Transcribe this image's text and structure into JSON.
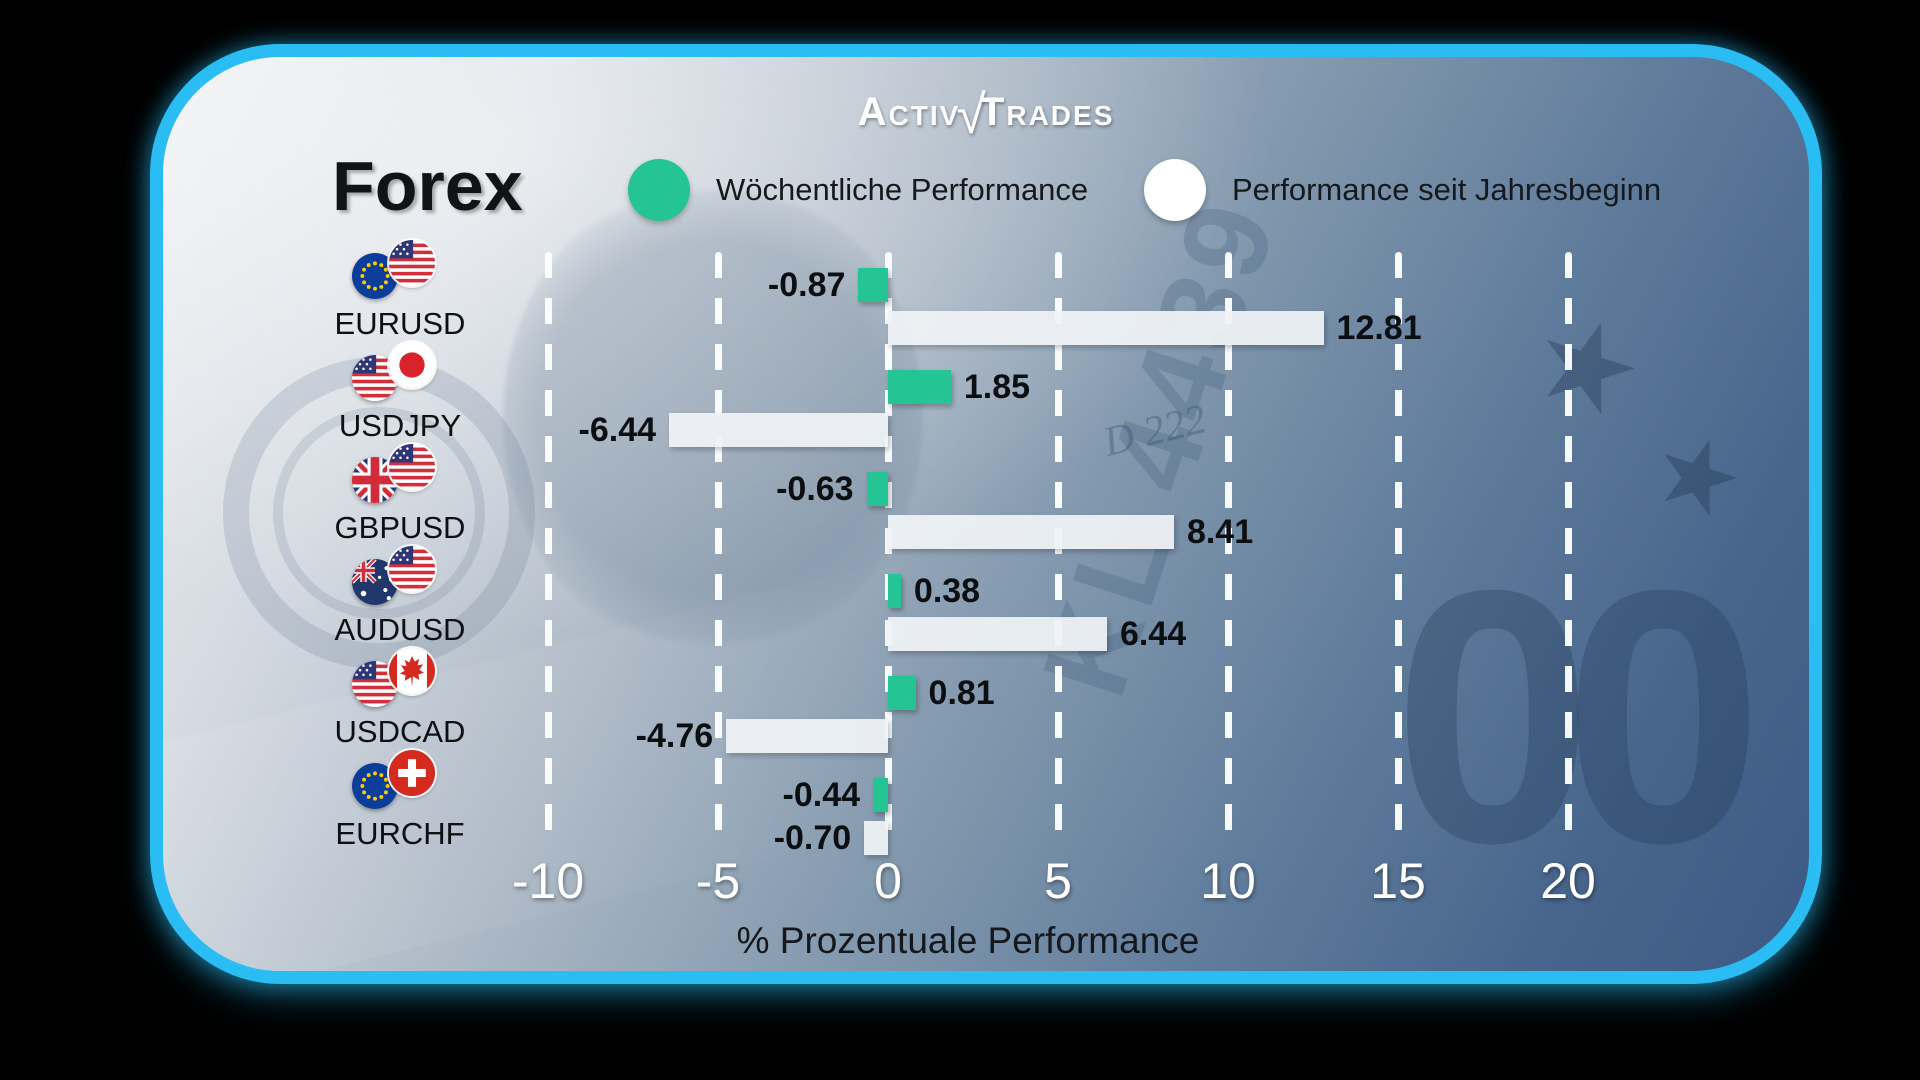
{
  "brand": {
    "name": "ActivTrades",
    "part1": "Activ",
    "part2": "Trades",
    "check_glyph": "√"
  },
  "page_title": "Forex",
  "legend": {
    "weekly": {
      "label": "Wöchentliche Performance",
      "color": "#25C494"
    },
    "ytd": {
      "label": "Performance seit Jahresbeginn",
      "color": "#FFFFFF"
    }
  },
  "chart_data": {
    "type": "bar",
    "orientation": "horizontal",
    "title": "Forex",
    "xlabel": "% Prozentuale Performance",
    "ylabel": "",
    "xlim": [
      -10,
      20
    ],
    "x_ticks": [
      -10,
      -5,
      0,
      5,
      10,
      15,
      20
    ],
    "grid": "dashed-vertical-white",
    "legend_position": "top",
    "categories": [
      "EURUSD",
      "USDJPY",
      "GBPUSD",
      "AUDUSD",
      "USDCAD",
      "EURCHF"
    ],
    "flags": [
      [
        "eu",
        "us"
      ],
      [
        "us",
        "jp"
      ],
      [
        "gb",
        "us"
      ],
      [
        "au",
        "us"
      ],
      [
        "us",
        "ca"
      ],
      [
        "eu",
        "ch"
      ]
    ],
    "series": [
      {
        "name": "Wöchentliche Performance",
        "color": "#25C494",
        "values": [
          -0.87,
          1.85,
          -0.63,
          0.38,
          0.81,
          -0.44
        ]
      },
      {
        "name": "Performance seit Jahresbeginn",
        "color": "rgba(240,243,246,0.93)",
        "values": [
          12.81,
          -6.44,
          8.41,
          6.44,
          -4.76,
          -0.7
        ]
      }
    ]
  },
  "background": {
    "serial_text": "KL 4439",
    "plate_text": "D 222",
    "zeros_text": "00",
    "star_glyph": "★"
  },
  "colors": {
    "border": "#29BDF3",
    "accent_green": "#25C494",
    "bar_white": "#F0F3F6"
  }
}
